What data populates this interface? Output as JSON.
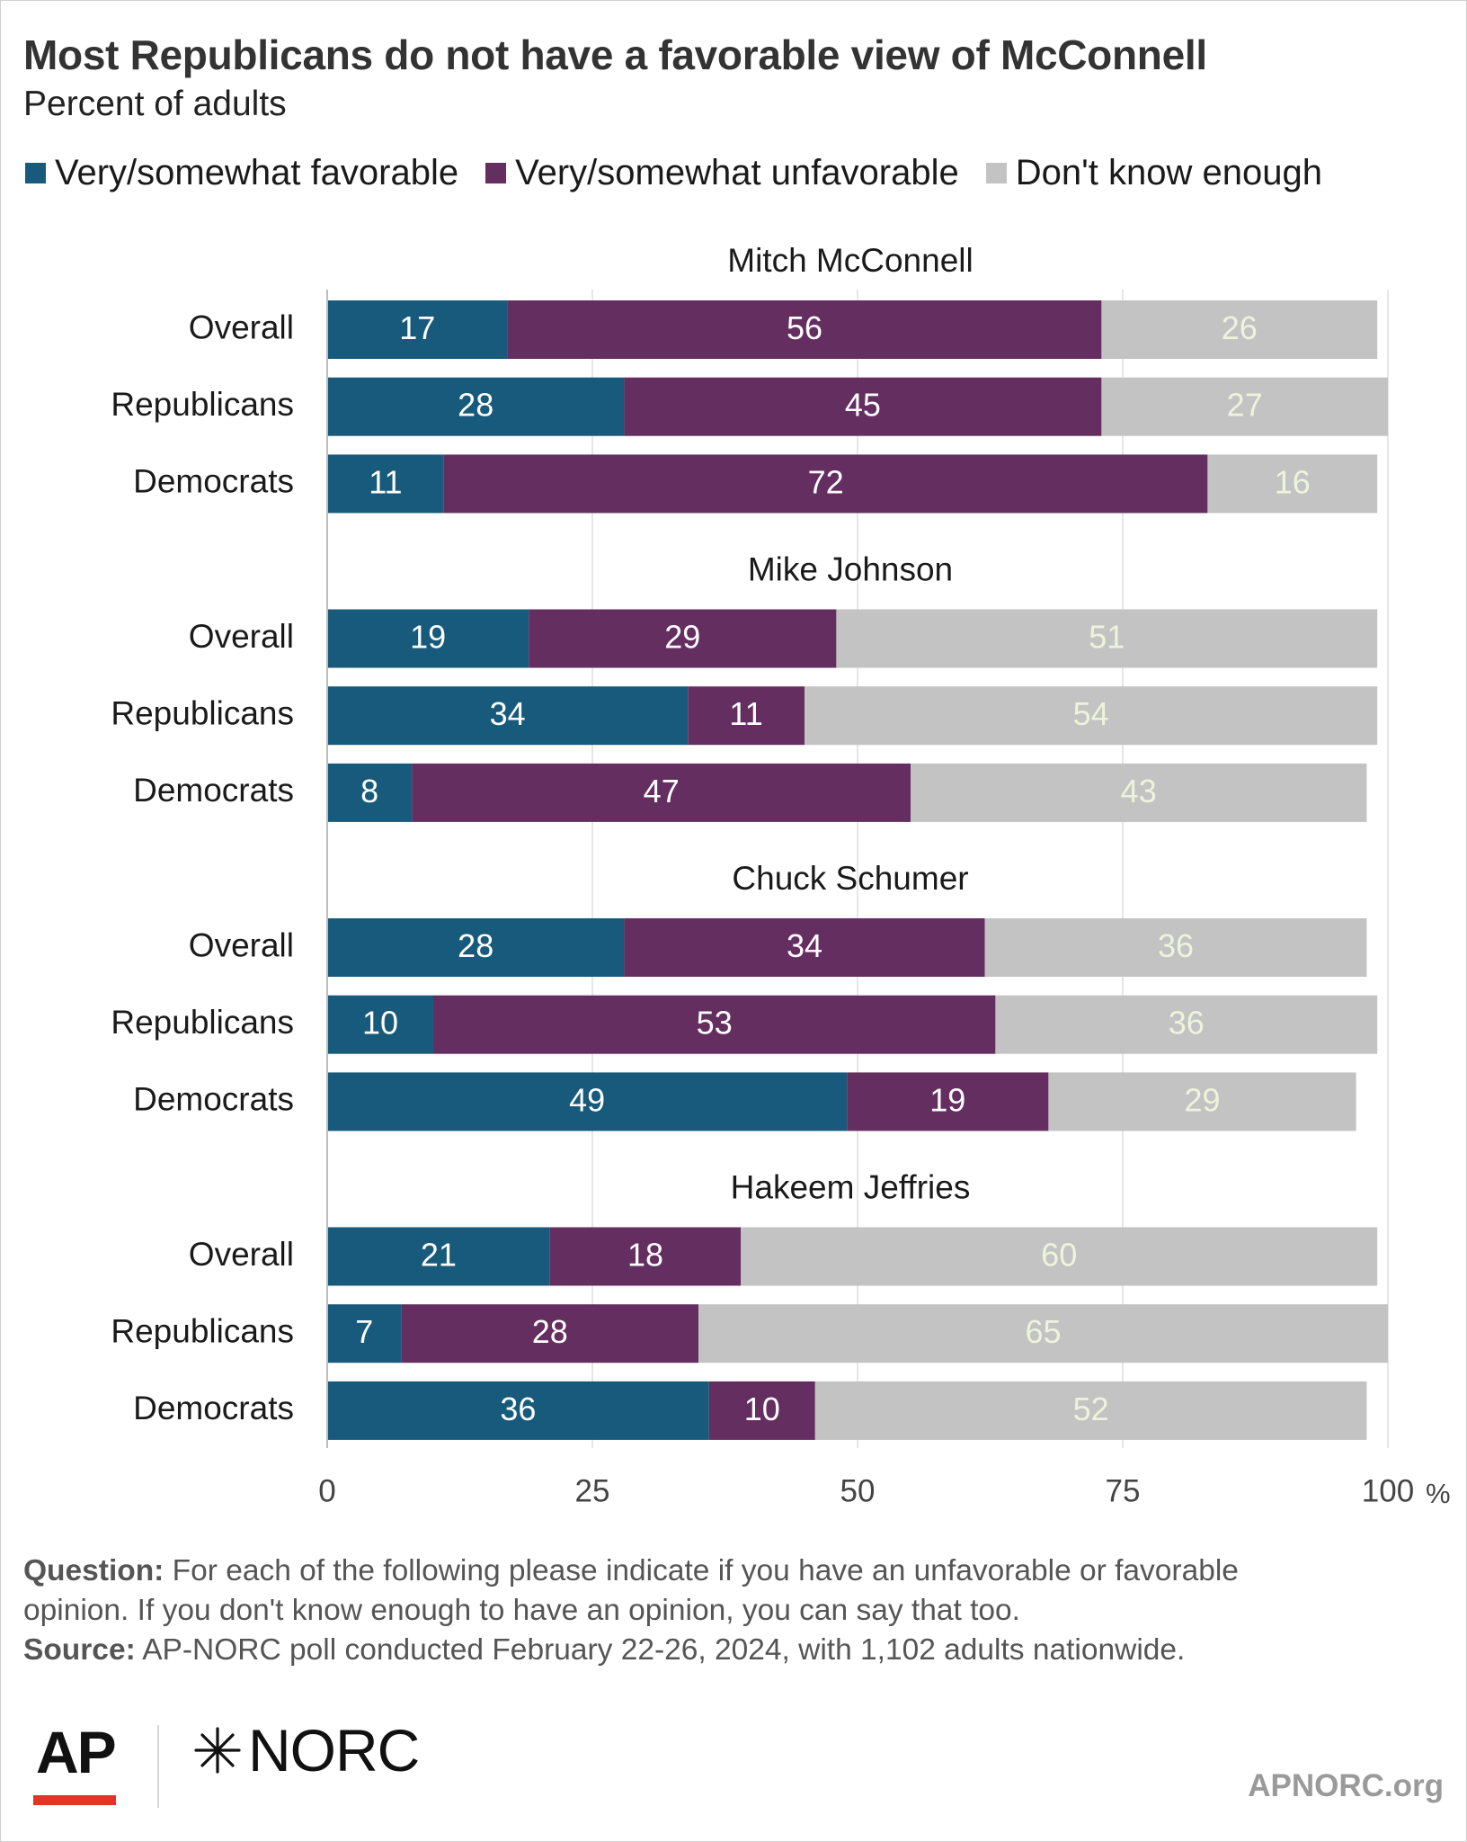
{
  "header": {
    "title": "Most Republicans do not have a favorable view of McConnell",
    "subtitle": "Percent of adults"
  },
  "legend": [
    {
      "label": "Very/somewhat favorable",
      "color": "#185a7b"
    },
    {
      "label": "Very/somewhat unfavorable",
      "color": "#652e61"
    },
    {
      "label": "Don't know enough",
      "color": "#c3c3c3"
    }
  ],
  "chart_data": {
    "type": "bar",
    "orientation": "horizontal",
    "stacked": true,
    "xlim": [
      0,
      100
    ],
    "x_ticks": [
      "0",
      "25",
      "50",
      "75",
      "100"
    ],
    "x_unit": "%",
    "grid": true,
    "legend_position": "top",
    "series_names": [
      "Very/somewhat favorable",
      "Very/somewhat unfavorable",
      "Don't know enough"
    ],
    "groups": [
      {
        "name": "Mitch McConnell",
        "rows": [
          {
            "label": "Overall",
            "values": [
              17,
              56,
              26
            ]
          },
          {
            "label": "Republicans",
            "values": [
              28,
              45,
              27
            ]
          },
          {
            "label": "Democrats",
            "values": [
              11,
              72,
              16
            ]
          }
        ]
      },
      {
        "name": "Mike Johnson",
        "rows": [
          {
            "label": "Overall",
            "values": [
              19,
              29,
              51
            ]
          },
          {
            "label": "Republicans",
            "values": [
              34,
              11,
              54
            ]
          },
          {
            "label": "Democrats",
            "values": [
              8,
              47,
              43
            ]
          }
        ]
      },
      {
        "name": "Chuck Schumer",
        "rows": [
          {
            "label": "Overall",
            "values": [
              28,
              34,
              36
            ]
          },
          {
            "label": "Republicans",
            "values": [
              10,
              53,
              36
            ]
          },
          {
            "label": "Democrats",
            "values": [
              49,
              19,
              29
            ]
          }
        ]
      },
      {
        "name": "Hakeem Jeffries",
        "rows": [
          {
            "label": "Overall",
            "values": [
              21,
              18,
              60
            ]
          },
          {
            "label": "Republicans",
            "values": [
              7,
              28,
              65
            ]
          },
          {
            "label": "Democrats",
            "values": [
              36,
              10,
              52
            ]
          }
        ]
      }
    ]
  },
  "footnote": {
    "question_label": "Question:",
    "question_text_1": "For each of the following please indicate if you have an unfavorable or favorable",
    "question_text_2": "opinion. If you don't know enough to have an opinion, you can say that too.",
    "source_label": "Source:",
    "source_text": "AP-NORC poll conducted February 22-26, 2024, with 1,102 adults nationwide."
  },
  "branding": {
    "ap_logo": "AP",
    "norc_logo": "NORC",
    "norc_icon": "norc-star-icon",
    "site": "APNORC.org"
  }
}
